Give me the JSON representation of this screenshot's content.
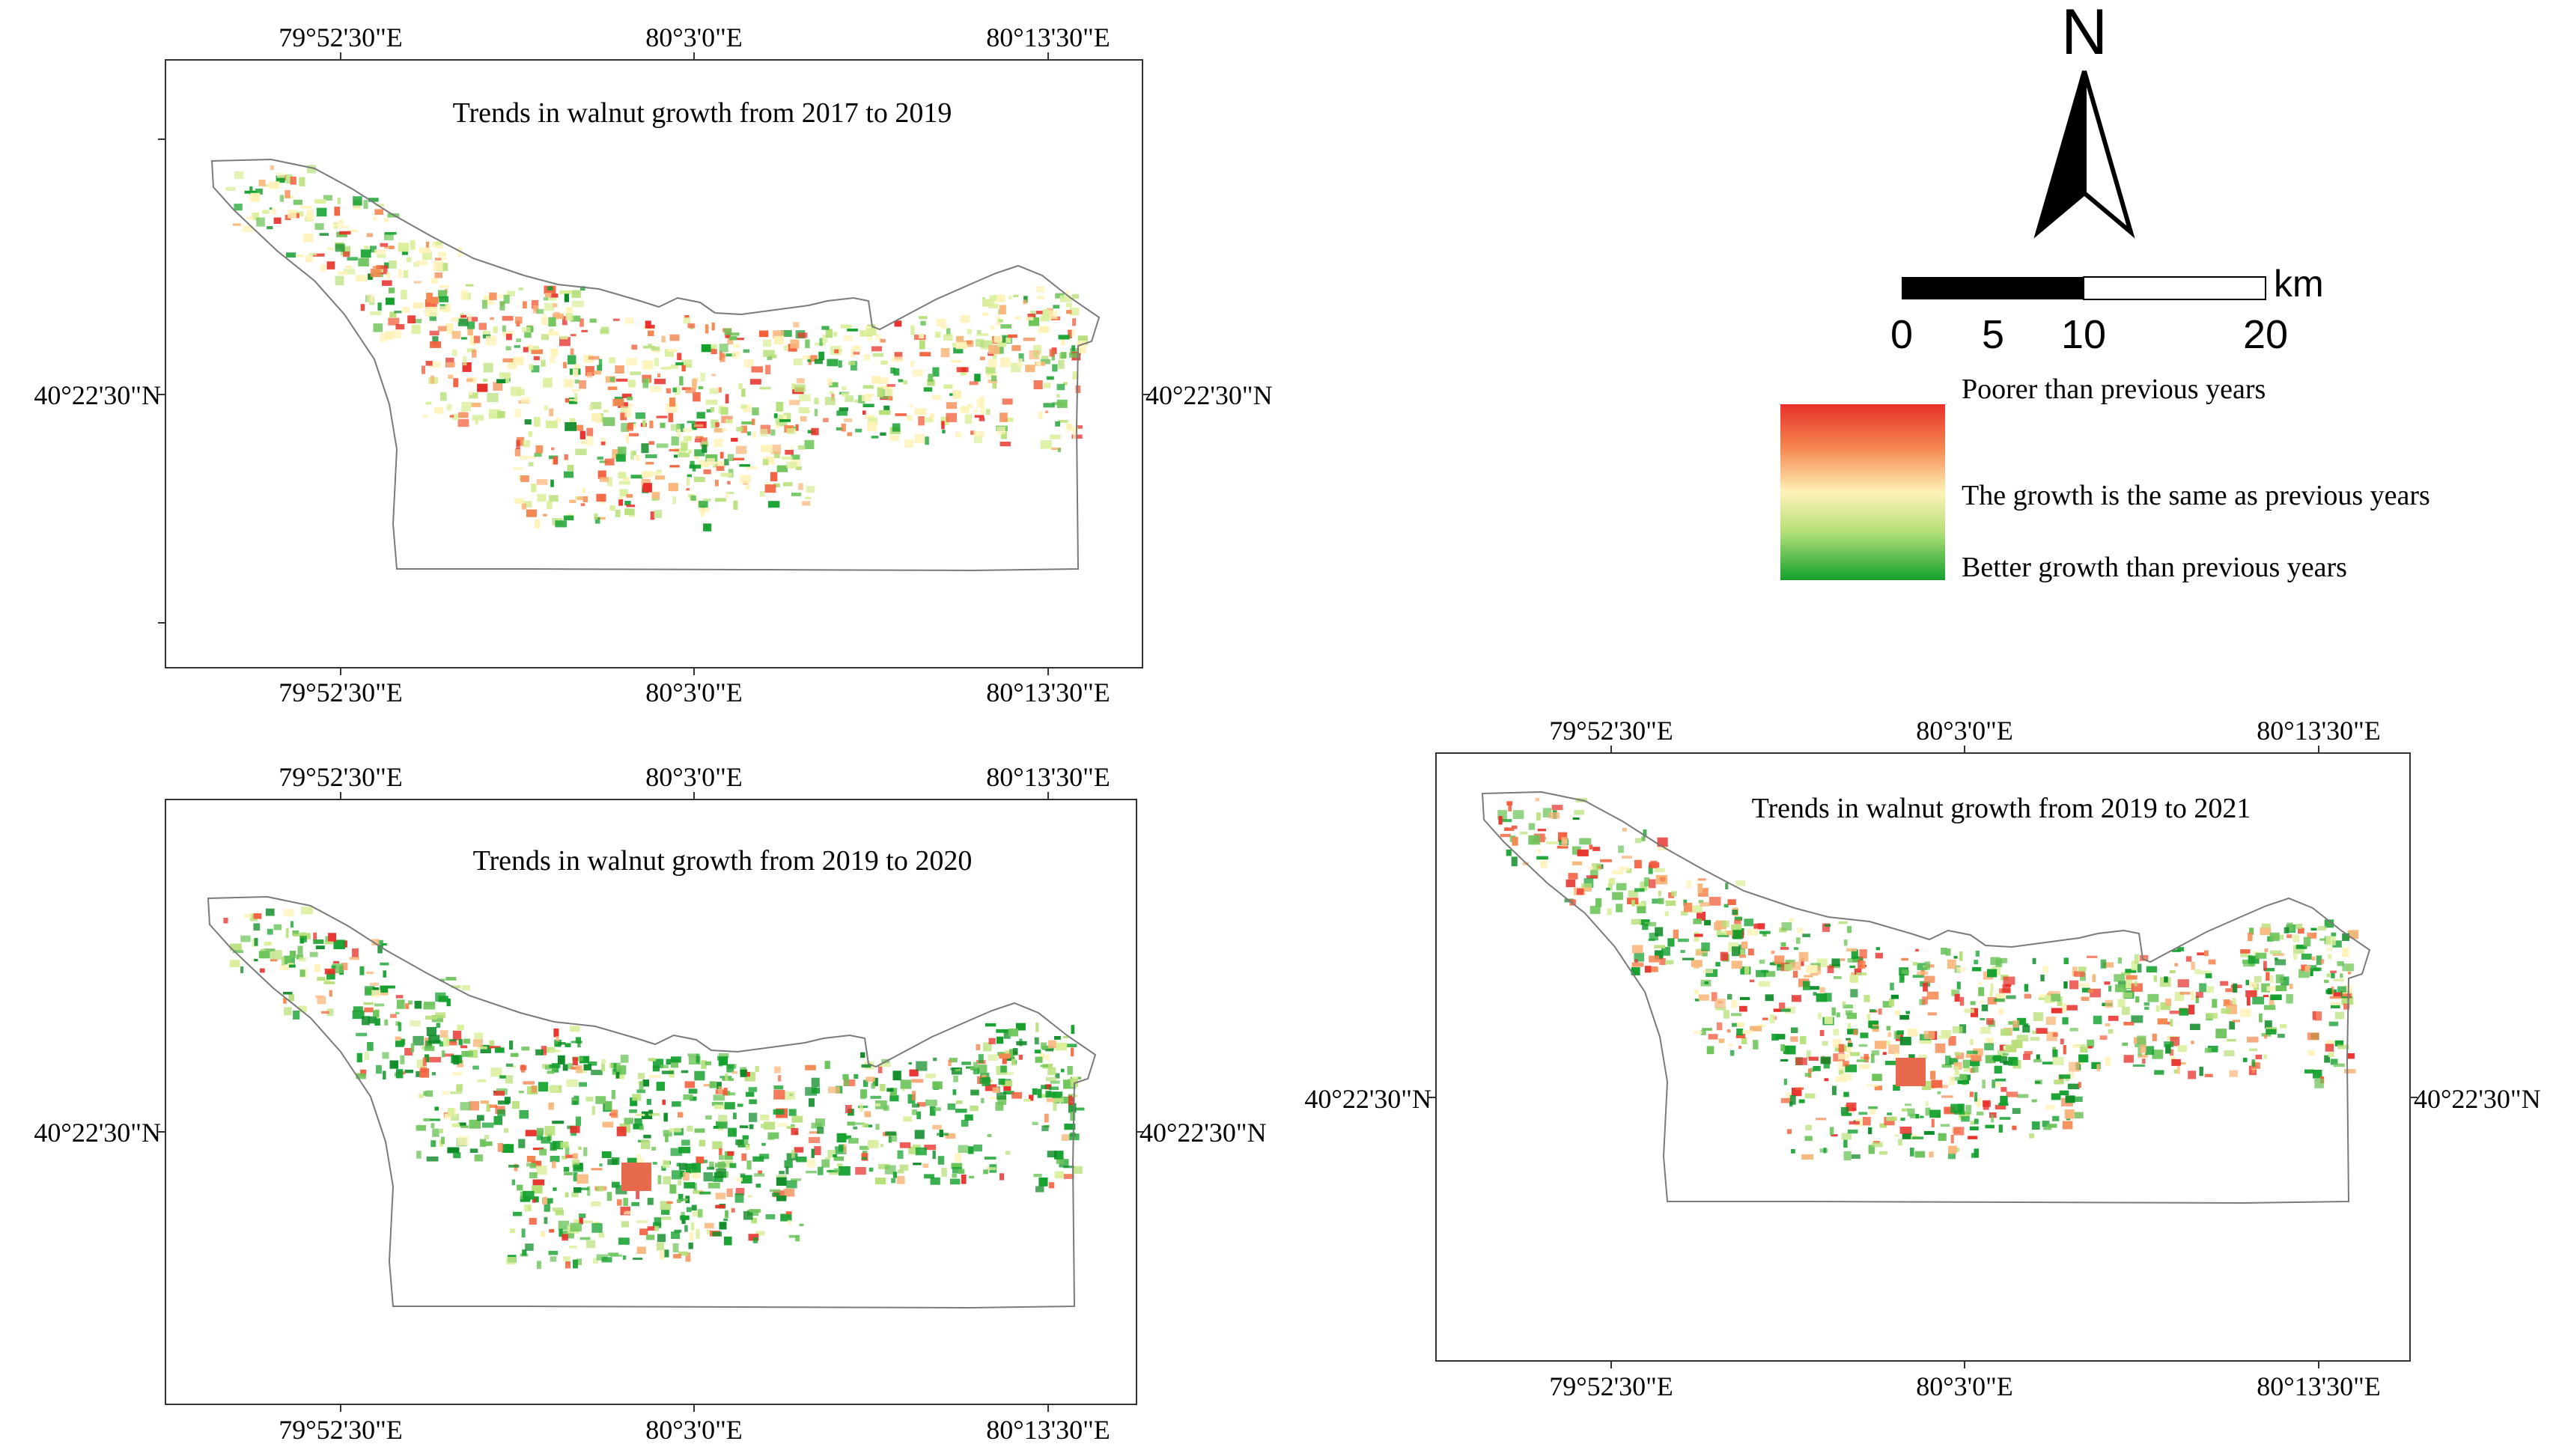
{
  "maps": [
    {
      "title": "Trends in walnut growth from 2017 to 2019",
      "top_ticks": [
        "79°52'30\"E",
        "80°3'0\"E",
        "80°13'30\"E"
      ],
      "bottom_ticks": [
        "79°52'30\"E",
        "80°3'0\"E",
        "80°13'30\"E"
      ],
      "left_lat": "40°22'30\"N",
      "right_lat": "40°22'30\"N"
    },
    {
      "title": "Trends in walnut growth from 2019 to 2020",
      "top_ticks": [
        "79°52'30\"E",
        "80°3'0\"E",
        "80°13'30\"E"
      ],
      "bottom_ticks": [
        "79°52'30\"E",
        "80°3'0\"E",
        "80°13'30\"E"
      ],
      "left_lat": "40°22'30\"N",
      "right_lat": "40°22'30\"N"
    },
    {
      "title": "Trends in walnut growth from 2019 to 2021",
      "top_ticks": [
        "79°52'30\"E",
        "80°3'0\"E",
        "80°13'30\"E"
      ],
      "bottom_ticks": [
        "79°52'30\"E",
        "80°3'0\"E",
        "80°13'30\"E"
      ],
      "left_lat": "40°22'30\"N",
      "right_lat": "40°22'30\"N"
    }
  ],
  "north_arrow": {
    "label": "N"
  },
  "scale_bar": {
    "unit": "km",
    "ticks": [
      "0",
      "5",
      "10",
      "20"
    ]
  },
  "legend": {
    "high": "Poorer than previous years",
    "mid": "The growth is the same as previous years",
    "low": "Better growth than previous years",
    "colors": {
      "poor": "#e8302a",
      "same": "#fff2b8",
      "better": "#13a02d"
    }
  }
}
